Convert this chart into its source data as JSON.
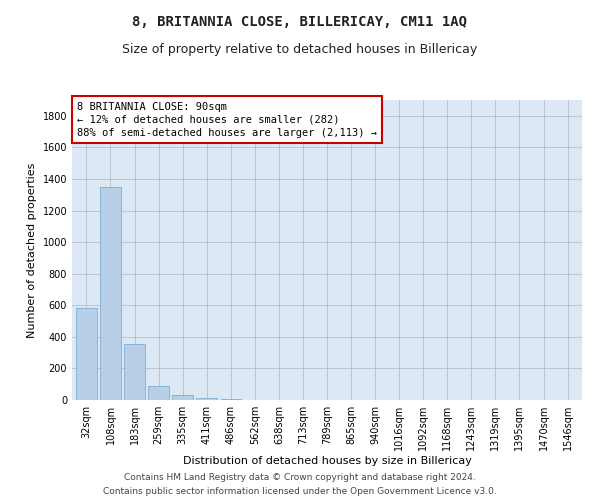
{
  "title": "8, BRITANNIA CLOSE, BILLERICAY, CM11 1AQ",
  "subtitle": "Size of property relative to detached houses in Billericay",
  "xlabel": "Distribution of detached houses by size in Billericay",
  "ylabel": "Number of detached properties",
  "categories": [
    "32sqm",
    "108sqm",
    "183sqm",
    "259sqm",
    "335sqm",
    "411sqm",
    "486sqm",
    "562sqm",
    "638sqm",
    "713sqm",
    "789sqm",
    "865sqm",
    "940sqm",
    "1016sqm",
    "1092sqm",
    "1168sqm",
    "1243sqm",
    "1319sqm",
    "1395sqm",
    "1470sqm",
    "1546sqm"
  ],
  "values": [
    580,
    1350,
    355,
    90,
    30,
    15,
    5,
    2,
    1,
    0,
    0,
    0,
    0,
    0,
    0,
    0,
    0,
    0,
    0,
    0,
    0
  ],
  "bar_color": "#b8cfe8",
  "bar_edge_color": "#7aadd4",
  "annotation_line1": "8 BRITANNIA CLOSE: 90sqm",
  "annotation_line2": "← 12% of detached houses are smaller (282)",
  "annotation_line3": "88% of semi-detached houses are larger (2,113) →",
  "annotation_box_facecolor": "#ffffff",
  "annotation_box_edgecolor": "#cc0000",
  "ylim": [
    0,
    1900
  ],
  "yticks": [
    0,
    200,
    400,
    600,
    800,
    1000,
    1200,
    1400,
    1600,
    1800
  ],
  "bg_color": "#ffffff",
  "plot_bg_color": "#dde8f5",
  "grid_color": "#bbbbcc",
  "footer1": "Contains HM Land Registry data © Crown copyright and database right 2024.",
  "footer2": "Contains public sector information licensed under the Open Government Licence v3.0.",
  "title_fontsize": 10,
  "subtitle_fontsize": 9,
  "axis_label_fontsize": 8,
  "tick_fontsize": 7,
  "annotation_fontsize": 7.5,
  "footer_fontsize": 6.5
}
